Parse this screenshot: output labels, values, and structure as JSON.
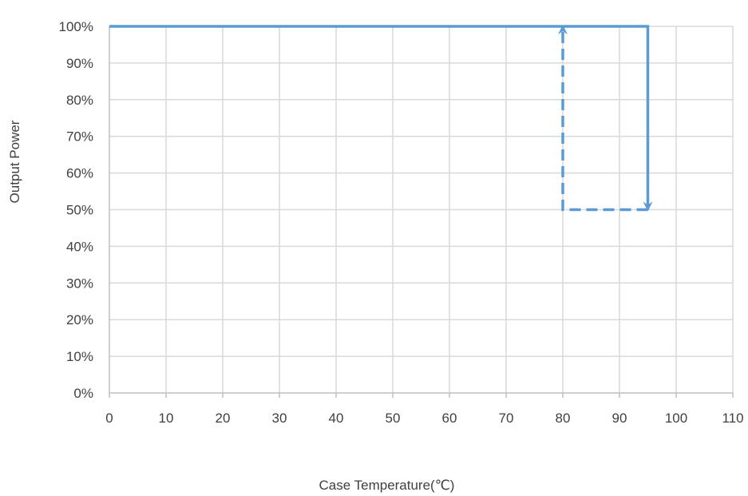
{
  "chart_data": {
    "type": "line",
    "title": "",
    "xlabel": "Case Temperature(℃)",
    "ylabel": "Output Power",
    "xlim": [
      0,
      110
    ],
    "ylim": [
      0,
      100
    ],
    "x_ticks": [
      0,
      10,
      20,
      30,
      40,
      50,
      60,
      70,
      80,
      90,
      100,
      110
    ],
    "y_ticks": [
      "0%",
      "10%",
      "20%",
      "30%",
      "40%",
      "50%",
      "60%",
      "70%",
      "80%",
      "90%",
      "100%"
    ],
    "grid": true,
    "series": [
      {
        "style": "solid",
        "color": "#5b9bd5",
        "arrow_at_end": true,
        "points": [
          [
            0,
            100
          ],
          [
            95,
            100
          ],
          [
            95,
            50
          ]
        ]
      },
      {
        "style": "dashed",
        "color": "#5b9bd5",
        "arrow_at_end": true,
        "points": [
          [
            95,
            50
          ],
          [
            80,
            50
          ],
          [
            80,
            100
          ]
        ]
      }
    ]
  }
}
